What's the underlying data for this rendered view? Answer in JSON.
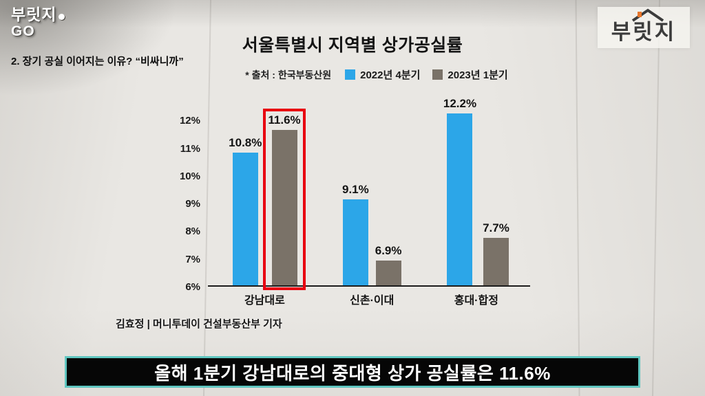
{
  "branding": {
    "channel_logo_line1": "부릿지",
    "channel_logo_line2": "GO",
    "corner_logo": "부릿지"
  },
  "caption": "2. 장기 공실 이어지는 이유? “비싸니까”",
  "chart_data": {
    "type": "bar",
    "title": "서울특별시 지역별 상가공실률",
    "source": "* 출처 : 한국부동산원",
    "categories": [
      "강남대로",
      "신촌·이대",
      "홍대·합정"
    ],
    "series": [
      {
        "name": "2022년 4분기",
        "color": "#2ca6e8",
        "values": [
          10.8,
          9.1,
          12.2
        ]
      },
      {
        "name": "2023년 1분기",
        "color": "#7a7268",
        "values": [
          11.6,
          6.9,
          7.7
        ]
      }
    ],
    "ylim": [
      6,
      12
    ],
    "ytick_step": 1,
    "unit": "%",
    "grid": false,
    "legend_position": "top",
    "highlight": {
      "category": "강남대로",
      "series": "2023년 1분기",
      "color": "#e8000f"
    }
  },
  "reporter": "김효정 | 머니투데이 건설부동산부 기자",
  "banner": {
    "text": "올해 1분기 강남대로의 중대형 상가 공실률은 11.6%",
    "border_color": "#5fc6c0"
  }
}
